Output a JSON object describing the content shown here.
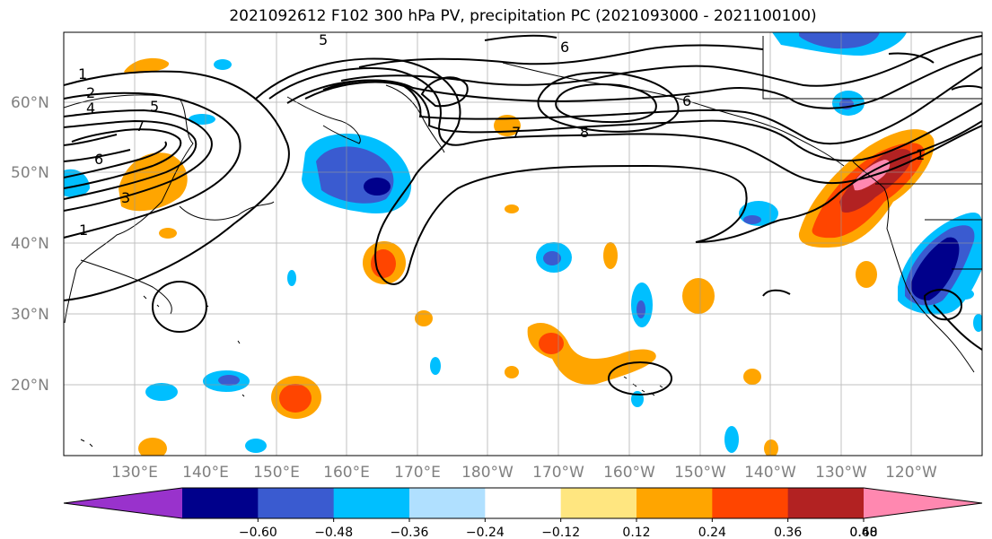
{
  "title": "2021092612 F102 300 hPa PV, precipitation PC (2021093000 - 2021100100)",
  "lat_labels": [
    "60°N",
    "50°N",
    "40°N",
    "30°N",
    "20°N"
  ],
  "lon_labels": [
    "130°E",
    "140°E",
    "150°E",
    "160°E",
    "170°E",
    "180°W",
    "170°W",
    "160°W",
    "150°W",
    "140°W",
    "130°W",
    "120°W"
  ],
  "colorbar": {
    "ticks": [
      "−0.60",
      "−0.48",
      "−0.36",
      "−0.24",
      "−0.12",
      "0.12",
      "0.24",
      "0.36",
      "0.48",
      "0.60"
    ],
    "colors": [
      "#9932cc",
      "#00008b",
      "#3a5bd0",
      "#00bfff",
      "#b0e0ff",
      "#ffffff",
      "#ffe680",
      "#ffa500",
      "#ff4500",
      "#b22222",
      "#ff88b0"
    ]
  },
  "contour_labels": [
    "1",
    "2",
    "4",
    "5",
    "7",
    "6",
    "3",
    "1",
    "5",
    "6",
    "7",
    "8",
    "6",
    "1"
  ]
}
